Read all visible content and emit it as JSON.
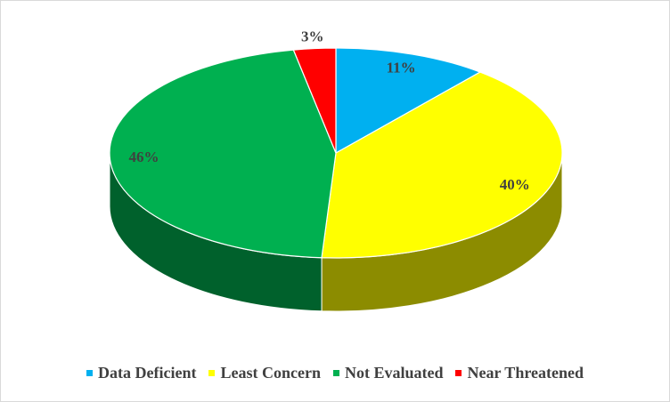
{
  "chart_data": {
    "type": "pie3d",
    "categories": [
      "Data Deficient",
      "Least Concern",
      "Not Evaluated",
      "Near Threatened"
    ],
    "values": [
      11,
      40,
      46,
      3
    ],
    "value_labels": [
      "11%",
      "40%",
      "46%",
      "3%"
    ],
    "colors": [
      "#00b0f0",
      "#ffff00",
      "#00b050",
      "#ff0000"
    ],
    "legend": "bottom"
  }
}
